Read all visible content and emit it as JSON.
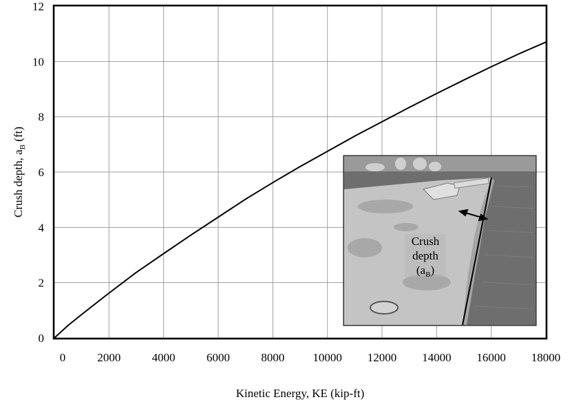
{
  "chart_data": {
    "type": "line",
    "title": "",
    "xlabel": "Kinetic Energy, KE (kip-ft)",
    "ylabel": {
      "main": "Crush depth, a",
      "sub": "B",
      "unit": " (ft)"
    },
    "xlim": [
      0,
      18000
    ],
    "ylim": [
      0,
      12
    ],
    "xticks": [
      "0",
      "2000",
      "4000",
      "6000",
      "8000",
      "10000",
      "12000",
      "14000",
      "16000",
      "18000"
    ],
    "xtick_values": [
      0,
      2000,
      4000,
      6000,
      8000,
      10000,
      12000,
      14000,
      16000,
      18000
    ],
    "yticks": [
      "0",
      "2",
      "4",
      "6",
      "8",
      "10",
      "12"
    ],
    "ytick_values": [
      0,
      2,
      4,
      6,
      8,
      10,
      12
    ],
    "grid": true,
    "series": [
      {
        "color": "#000000",
        "x": [
          0,
          500,
          1000,
          2000,
          3000,
          4000,
          5000,
          6000,
          7000,
          8000,
          9000,
          10000,
          11000,
          12000,
          13000,
          14000,
          15000,
          16000,
          17000,
          18000
        ],
        "y": [
          0,
          0.45,
          0.85,
          1.62,
          2.37,
          3.05,
          3.72,
          4.37,
          5.02,
          5.62,
          6.2,
          6.75,
          7.3,
          7.82,
          8.34,
          8.84,
          9.33,
          9.81,
          10.27,
          10.7
        ]
      }
    ],
    "inset": {
      "label_lines": [
        "Crush",
        "depth"
      ],
      "label_sub": {
        "main": "(a",
        "sub": "B",
        "close": ")"
      },
      "photo_colors": {
        "sky": "#8c8c8c",
        "water": "#6e6e6e",
        "barge": "#c9c9c9",
        "rust": "#9a9a9a"
      }
    }
  }
}
